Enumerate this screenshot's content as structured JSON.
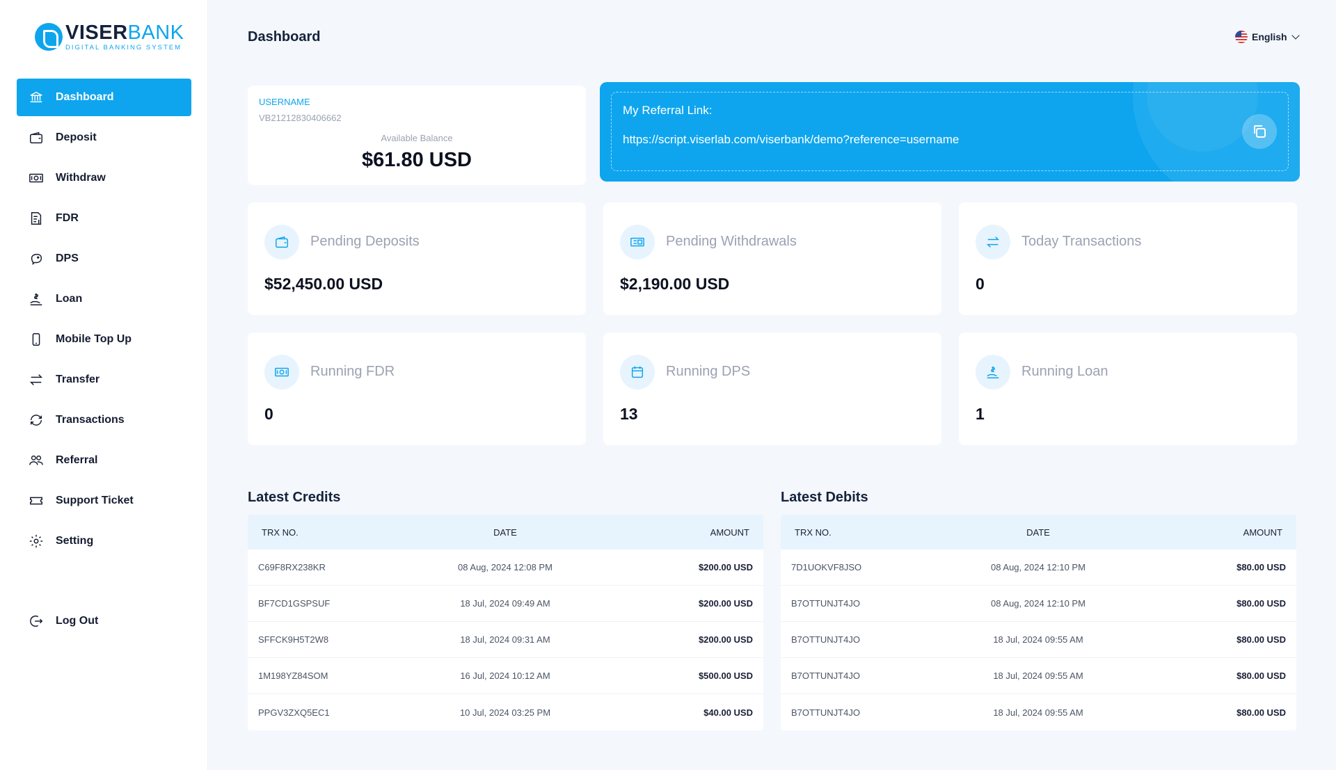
{
  "brand": {
    "name_a": "VISER",
    "name_b": "BANK",
    "tagline": "DIGITAL BANKING SYSTEM"
  },
  "sidebar": {
    "items": [
      {
        "label": "Dashboard",
        "icon": "bank-icon"
      },
      {
        "label": "Deposit",
        "icon": "wallet-icon"
      },
      {
        "label": "Withdraw",
        "icon": "money-icon"
      },
      {
        "label": "FDR",
        "icon": "document-icon"
      },
      {
        "label": "DPS",
        "icon": "piggy-bank-icon"
      },
      {
        "label": "Loan",
        "icon": "hand-dollar-icon"
      },
      {
        "label": "Mobile Top Up",
        "icon": "mobile-icon"
      },
      {
        "label": "Transfer",
        "icon": "transfer-arrows-icon"
      },
      {
        "label": "Transactions",
        "icon": "refresh-icon"
      },
      {
        "label": "Referral",
        "icon": "users-icon"
      },
      {
        "label": "Support Ticket",
        "icon": "ticket-icon"
      },
      {
        "label": "Setting",
        "icon": "gear-icon"
      }
    ],
    "logout": "Log Out"
  },
  "header": {
    "title": "Dashboard",
    "language": "English"
  },
  "balance": {
    "username_label": "USERNAME",
    "username": "VB21212830406662",
    "available_label": "Available Balance",
    "amount": "$61.80 USD"
  },
  "referral": {
    "label": "My Referral Link:",
    "link": "https://script.viserlab.com/viserbank/demo?reference=username"
  },
  "stats": [
    {
      "title": "Pending Deposits",
      "value": "$52,450.00 USD",
      "icon": "wallet-icon"
    },
    {
      "title": "Pending Withdrawals",
      "value": "$2,190.00 USD",
      "icon": "money-icon"
    },
    {
      "title": "Today Transactions",
      "value": "0",
      "icon": "transfer-arrows-icon"
    },
    {
      "title": "Running FDR",
      "value": "0",
      "icon": "money-icon"
    },
    {
      "title": "Running DPS",
      "value": "13",
      "icon": "calendar-icon"
    },
    {
      "title": "Running Loan",
      "value": "1",
      "icon": "hand-dollar-icon"
    }
  ],
  "credits": {
    "title": "Latest Credits",
    "headers": [
      "TRX NO.",
      "DATE",
      "AMOUNT"
    ],
    "rows": [
      [
        "C69F8RX238KR",
        "08 Aug, 2024 12:08 PM",
        "$200.00 USD"
      ],
      [
        "BF7CD1GSPSUF",
        "18 Jul, 2024 09:49 AM",
        "$200.00 USD"
      ],
      [
        "SFFCK9H5T2W8",
        "18 Jul, 2024 09:31 AM",
        "$200.00 USD"
      ],
      [
        "1M198YZ84SOM",
        "16 Jul, 2024 10:12 AM",
        "$500.00 USD"
      ],
      [
        "PPGV3ZXQ5EC1",
        "10 Jul, 2024 03:25 PM",
        "$40.00 USD"
      ]
    ]
  },
  "debits": {
    "title": "Latest Debits",
    "headers": [
      "TRX NO.",
      "DATE",
      "AMOUNT"
    ],
    "rows": [
      [
        "7D1UOKVF8JSO",
        "08 Aug, 2024 12:10 PM",
        "$80.00 USD"
      ],
      [
        "B7OTTUNJT4JO",
        "08 Aug, 2024 12:10 PM",
        "$80.00 USD"
      ],
      [
        "B7OTTUNJT4JO",
        "18 Jul, 2024 09:55 AM",
        "$80.00 USD"
      ],
      [
        "B7OTTUNJT4JO",
        "18 Jul, 2024 09:55 AM",
        "$80.00 USD"
      ],
      [
        "B7OTTUNJT4JO",
        "18 Jul, 2024 09:55 AM",
        "$80.00 USD"
      ]
    ]
  },
  "colors": {
    "accent": "#0ea5ee",
    "text": "#14223b",
    "background": "#f4f7fb"
  }
}
